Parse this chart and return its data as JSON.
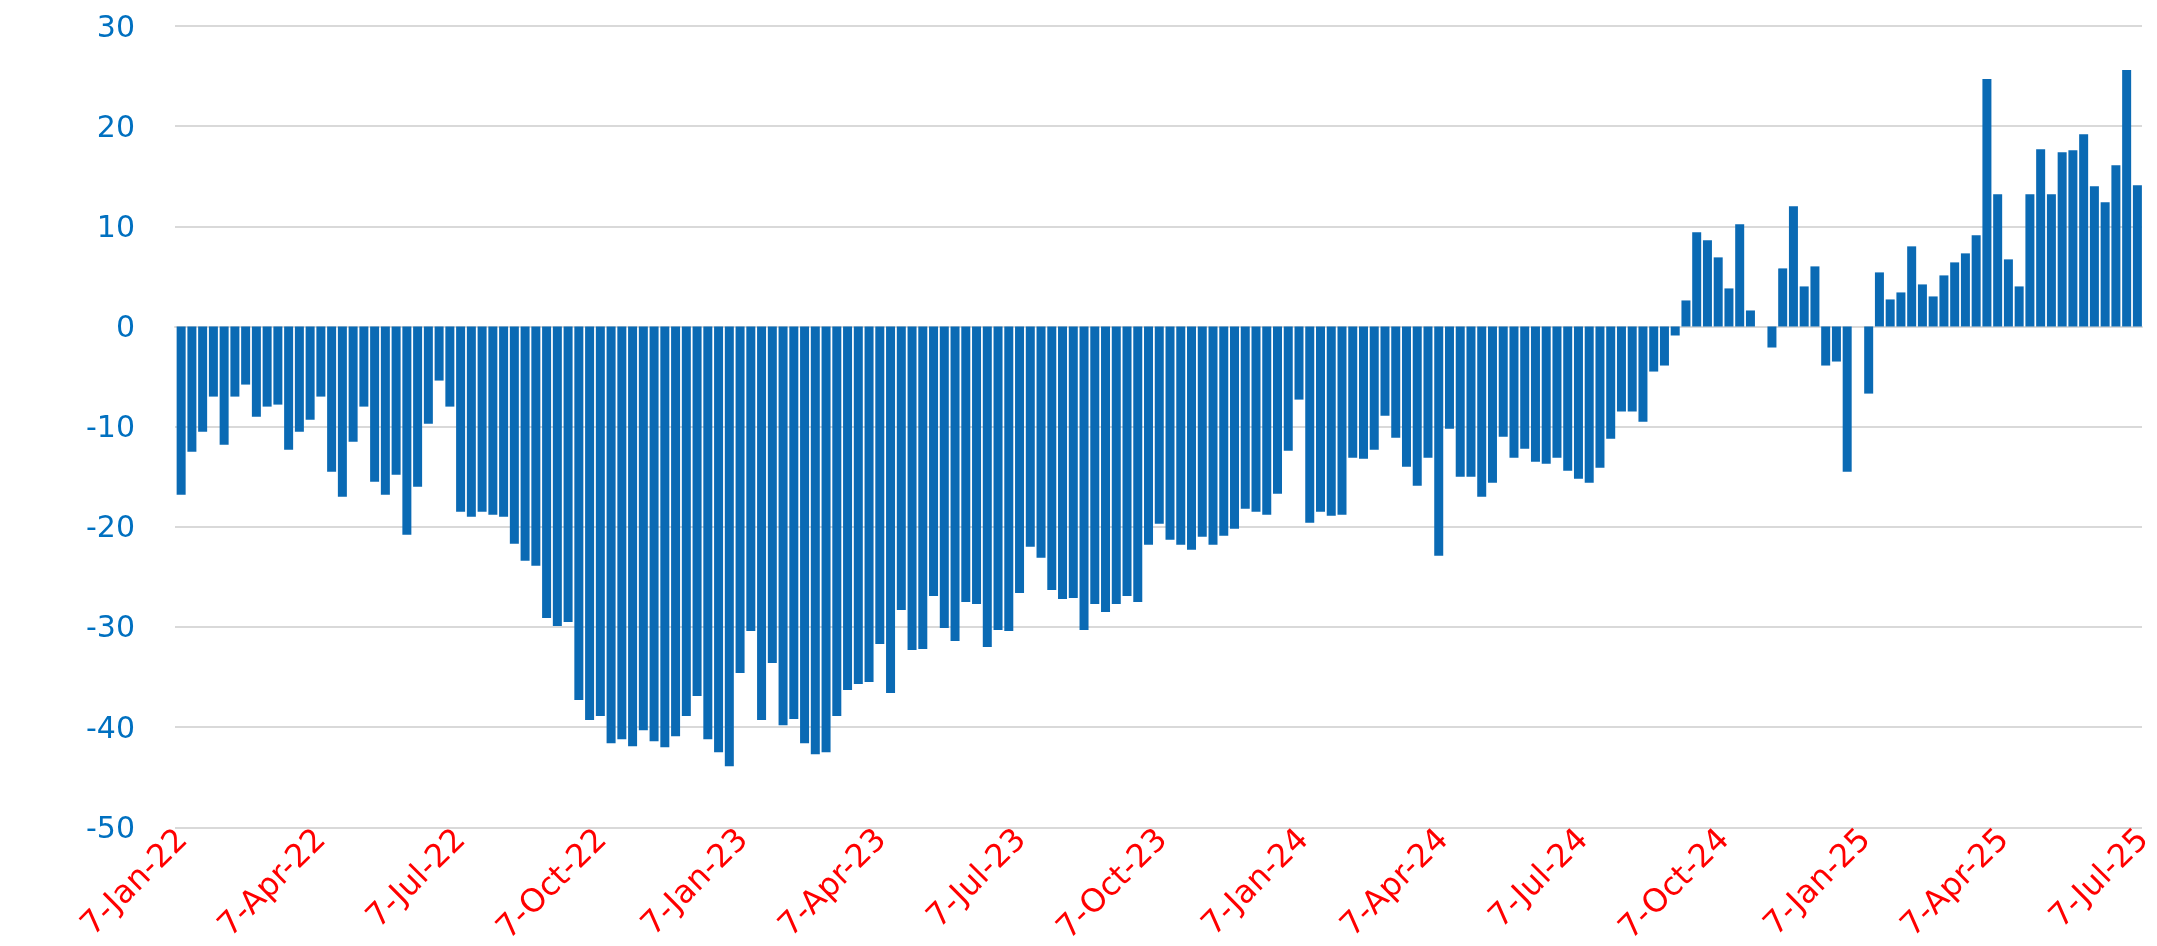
{
  "chart_data": {
    "type": "bar",
    "color": "#0a6ab4",
    "grid": "y",
    "xlim": [
      "2022-01-03",
      "2025-07-07"
    ],
    "ylim": [
      -50,
      30
    ],
    "yticks": [
      -50,
      -40,
      -30,
      -20,
      -10,
      0,
      10,
      20,
      30
    ],
    "xticks": [
      {
        "value": "2022-01-07",
        "label": "7-Jan-22"
      },
      {
        "value": "2022-04-07",
        "label": "7-Apr-22"
      },
      {
        "value": "2022-07-07",
        "label": "7-Jul-22"
      },
      {
        "value": "2022-10-07",
        "label": "7-Oct-22"
      },
      {
        "value": "2023-01-07",
        "label": "7-Jan-23"
      },
      {
        "value": "2023-04-07",
        "label": "7-Apr-23"
      },
      {
        "value": "2023-07-07",
        "label": "7-Jul-23"
      },
      {
        "value": "2023-10-07",
        "label": "7-Oct-23"
      },
      {
        "value": "2024-01-07",
        "label": "7-Jan-24"
      },
      {
        "value": "2024-04-07",
        "label": "7-Apr-24"
      },
      {
        "value": "2024-07-07",
        "label": "7-Jul-24"
      },
      {
        "value": "2024-10-07",
        "label": "7-Oct-24"
      },
      {
        "value": "2025-01-07",
        "label": "7-Jan-25"
      },
      {
        "value": "2025-04-07",
        "label": "7-Apr-25"
      },
      {
        "value": "2025-07-07",
        "label": "7-Jul-25"
      }
    ],
    "x": [
      "2022-01-07",
      "2022-01-14",
      "2022-01-21",
      "2022-01-28",
      "2022-02-04",
      "2022-02-11",
      "2022-02-18",
      "2022-02-25",
      "2022-03-04",
      "2022-03-11",
      "2022-03-18",
      "2022-03-25",
      "2022-04-01",
      "2022-04-08",
      "2022-04-15",
      "2022-04-22",
      "2022-04-29",
      "2022-05-06",
      "2022-05-13",
      "2022-05-20",
      "2022-05-27",
      "2022-06-03",
      "2022-06-10",
      "2022-06-17",
      "2022-06-24",
      "2022-07-01",
      "2022-07-08",
      "2022-07-15",
      "2022-07-22",
      "2022-07-29",
      "2022-08-05",
      "2022-08-12",
      "2022-08-19",
      "2022-08-26",
      "2022-09-02",
      "2022-09-09",
      "2022-09-16",
      "2022-09-23",
      "2022-09-30",
      "2022-10-07",
      "2022-10-14",
      "2022-10-21",
      "2022-10-28",
      "2022-11-04",
      "2022-11-11",
      "2022-11-18",
      "2022-11-25",
      "2022-12-02",
      "2022-12-09",
      "2022-12-16",
      "2022-12-23",
      "2022-12-30",
      "2023-01-06",
      "2023-01-13",
      "2023-01-20",
      "2023-01-27",
      "2023-02-03",
      "2023-02-10",
      "2023-02-17",
      "2023-02-24",
      "2023-03-03",
      "2023-03-10",
      "2023-03-17",
      "2023-03-24",
      "2023-03-31",
      "2023-04-07",
      "2023-04-14",
      "2023-04-21",
      "2023-04-28",
      "2023-05-05",
      "2023-05-12",
      "2023-05-19",
      "2023-05-26",
      "2023-06-02",
      "2023-06-09",
      "2023-06-16",
      "2023-06-23",
      "2023-06-30",
      "2023-07-07",
      "2023-07-14",
      "2023-07-21",
      "2023-07-28",
      "2023-08-04",
      "2023-08-11",
      "2023-08-18",
      "2023-08-25",
      "2023-09-01",
      "2023-09-08",
      "2023-09-15",
      "2023-09-22",
      "2023-09-29",
      "2023-10-06",
      "2023-10-13",
      "2023-10-20",
      "2023-10-27",
      "2023-11-03",
      "2023-11-10",
      "2023-11-17",
      "2023-11-24",
      "2023-12-01",
      "2023-12-08",
      "2023-12-15",
      "2023-12-22",
      "2023-12-29",
      "2024-01-05",
      "2024-01-12",
      "2024-01-19",
      "2024-01-26",
      "2024-02-02",
      "2024-02-09",
      "2024-02-16",
      "2024-02-23",
      "2024-03-01",
      "2024-03-08",
      "2024-03-15",
      "2024-03-22",
      "2024-03-29",
      "2024-04-05",
      "2024-04-12",
      "2024-04-19",
      "2024-04-26",
      "2024-05-03",
      "2024-05-10",
      "2024-05-17",
      "2024-05-24",
      "2024-05-31",
      "2024-06-07",
      "2024-06-14",
      "2024-06-21",
      "2024-06-28",
      "2024-07-05",
      "2024-07-12",
      "2024-07-19",
      "2024-07-26",
      "2024-08-02",
      "2024-08-09",
      "2024-08-16",
      "2024-08-23",
      "2024-08-30",
      "2024-09-06",
      "2024-09-13",
      "2024-09-20",
      "2024-09-27",
      "2024-10-04",
      "2024-10-11",
      "2024-10-18",
      "2024-10-25",
      "2024-11-01",
      "2024-11-08",
      "2024-11-15",
      "2024-11-22",
      "2024-11-29",
      "2024-12-06",
      "2024-12-13",
      "2024-12-20",
      "2024-12-27",
      "2025-01-03",
      "2025-01-10",
      "2025-01-17",
      "2025-01-24",
      "2025-01-31",
      "2025-02-07",
      "2025-02-14",
      "2025-02-21",
      "2025-02-28",
      "2025-03-07",
      "2025-03-14",
      "2025-03-21",
      "2025-03-28",
      "2025-04-04",
      "2025-04-11",
      "2025-04-18",
      "2025-04-25",
      "2025-05-02",
      "2025-05-09",
      "2025-05-16",
      "2025-05-23",
      "2025-05-30",
      "2025-06-06",
      "2025-06-13",
      "2025-06-20",
      "2025-06-27",
      "2025-07-04"
    ],
    "values": [
      -16.8,
      -12.5,
      -10.5,
      -7,
      -11.8,
      -7,
      -5.8,
      -9,
      -8,
      -7.8,
      -12.3,
      -10.5,
      -9.3,
      -7,
      -14.5,
      -17,
      -11.5,
      -8,
      -15.5,
      -16.8,
      -14.8,
      -20.8,
      -16,
      -9.7,
      -5.4,
      -8,
      -18.5,
      -19,
      -18.5,
      -18.8,
      -19,
      -21.7,
      -23.4,
      -23.9,
      -29.1,
      -29.9,
      -29.5,
      -37.3,
      -39.3,
      -38.9,
      -41.6,
      -41.2,
      -41.9,
      -40.3,
      -41.4,
      -42,
      -40.9,
      -38.9,
      -36.9,
      -41.2,
      -42.5,
      -43.9,
      -34.6,
      -30.4,
      -39.3,
      -33.6,
      -39.8,
      -39.2,
      -41.6,
      -42.7,
      -42.5,
      -38.9,
      -36.3,
      -35.7,
      -35.5,
      -31.7,
      -36.6,
      -28.3,
      -32.3,
      -32.2,
      -26.9,
      -30.1,
      -31.4,
      -27.5,
      -27.7,
      -32,
      -30.3,
      -30.4,
      -26.6,
      -22,
      -23.1,
      -26.3,
      -27.2,
      -27.1,
      -30.3,
      -27.7,
      -28.5,
      -27.7,
      -26.9,
      -27.5,
      -21.8,
      -19.7,
      -21.3,
      -21.8,
      -22.3,
      -21,
      -21.8,
      -20.9,
      -20.2,
      -18.2,
      -18.5,
      -18.8,
      -16.7,
      -12.4,
      -7.3,
      -19.6,
      -18.5,
      -18.9,
      -18.8,
      -13.1,
      -13.2,
      -12.3,
      -8.9,
      -11.1,
      -14,
      -15.9,
      -13.1,
      -22.9,
      -10.2,
      -15,
      -15,
      -17,
      -15.6,
      -11,
      -13.1,
      -12.2,
      -13.5,
      -13.7,
      -13.1,
      -14.4,
      -15.2,
      -15.6,
      -14.1,
      -11.2,
      -8.5,
      -8.5,
      -9.5,
      -4.5,
      -3.9,
      -0.9,
      2.6,
      9.4,
      8.6,
      6.9,
      3.8,
      10.2,
      1.6,
      0,
      -2.1,
      5.8,
      12,
      4,
      6,
      -3.9,
      -3.5,
      -14.5,
      0,
      -6.7,
      5.4,
      2.7,
      3.4,
      8,
      4.2,
      3,
      5.1,
      6.4,
      7.3,
      9.1,
      24.7,
      13.2,
      6.7,
      4,
      13.2,
      17.7,
      13.2,
      17.4,
      17.6,
      19.2,
      14,
      12.4,
      16.1,
      25.6,
      14.1
    ]
  }
}
